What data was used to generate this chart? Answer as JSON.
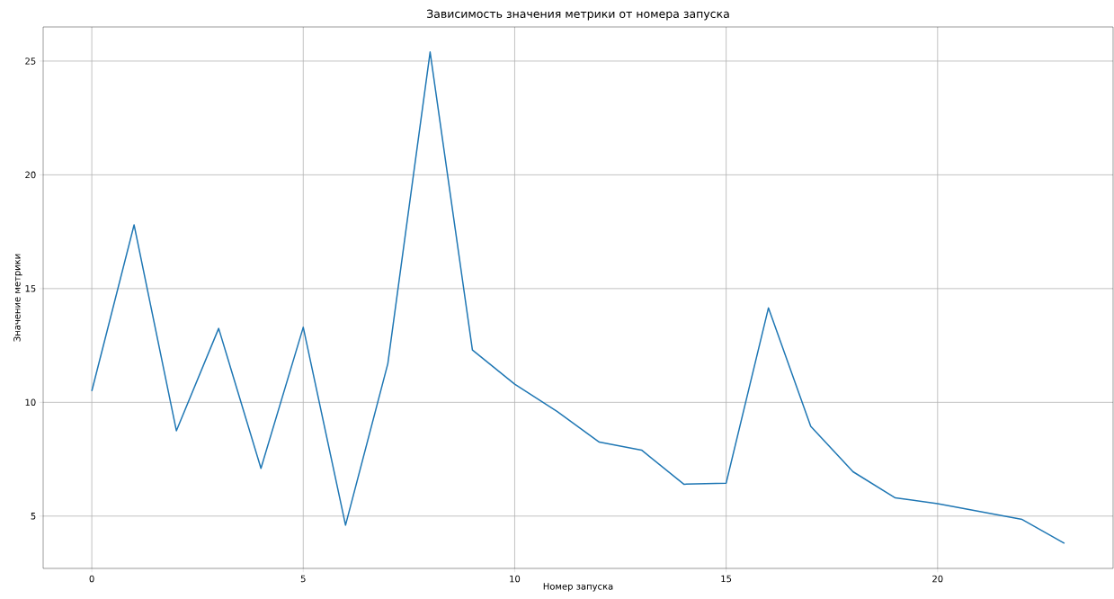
{
  "chart_data": {
    "type": "line",
    "title": "Зависимость значения метрики от номера запуска",
    "xlabel": "Номер запуска",
    "ylabel": "Значение метрики",
    "x": [
      0,
      1,
      2,
      3,
      4,
      5,
      6,
      7,
      8,
      9,
      10,
      11,
      12,
      13,
      14,
      15,
      16,
      17,
      18,
      19,
      20,
      21,
      22,
      23
    ],
    "series": [
      {
        "color": "#1f77b4",
        "values": [
          10.5,
          17.8,
          8.75,
          13.25,
          7.1,
          13.3,
          4.6,
          11.7,
          25.4,
          12.3,
          10.8,
          9.6,
          8.25,
          7.9,
          6.4,
          6.45,
          14.15,
          8.95,
          6.95,
          5.8,
          5.55,
          5.2,
          4.85,
          3.8
        ]
      }
    ],
    "xlim": [
      -1.15,
      24.15
    ],
    "ylim": [
      2.7,
      26.5
    ],
    "xticks": [
      0,
      5,
      10,
      15,
      20
    ],
    "yticks": [
      5,
      10,
      15,
      20,
      25
    ],
    "grid": true,
    "marker": "none",
    "line_style": "solid"
  }
}
